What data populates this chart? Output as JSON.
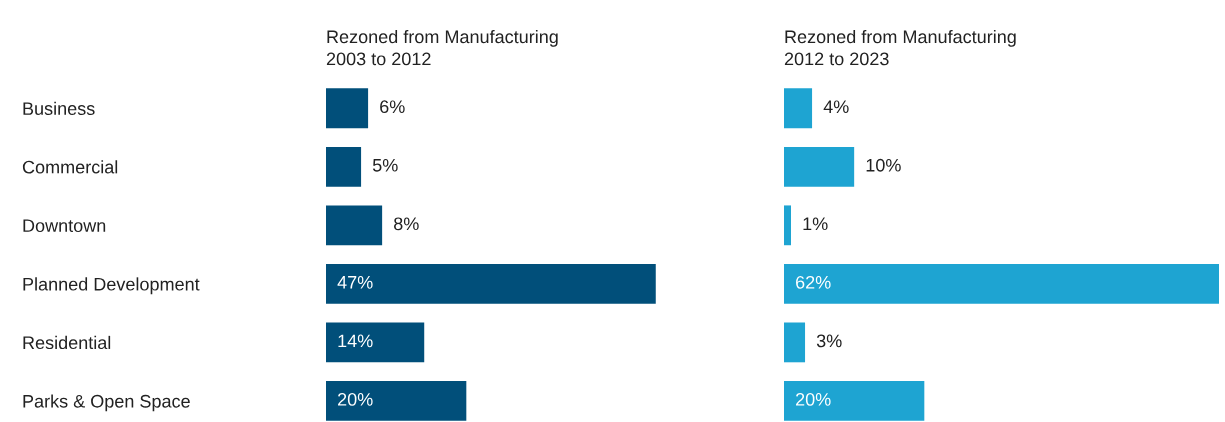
{
  "chart_data": [
    {
      "type": "bar",
      "orientation": "horizontal",
      "title": "Rezoned from Manufacturing\n2003 to 2012",
      "categories": [
        "Business",
        "Commercial",
        "Downtown",
        "Planned Development",
        "Residential",
        "Parks & Open Space"
      ],
      "values": [
        6,
        5,
        8,
        47,
        14,
        20
      ],
      "value_labels": [
        "6%",
        "5%",
        "8%",
        "47%",
        "14%",
        "20%"
      ],
      "color": "#014f7a",
      "grid": false,
      "legend": false
    },
    {
      "type": "bar",
      "orientation": "horizontal",
      "title": "Rezoned from Manufacturing\n2012 to 2023",
      "categories": [
        null,
        null,
        null,
        null,
        null,
        null
      ],
      "values": [
        4,
        10,
        1,
        62,
        3,
        20
      ],
      "value_labels": [
        "4%",
        "10%",
        "1%",
        "62%",
        "3%",
        "20%"
      ],
      "color": "#1ea4d2",
      "grid": false,
      "legend": false
    }
  ]
}
